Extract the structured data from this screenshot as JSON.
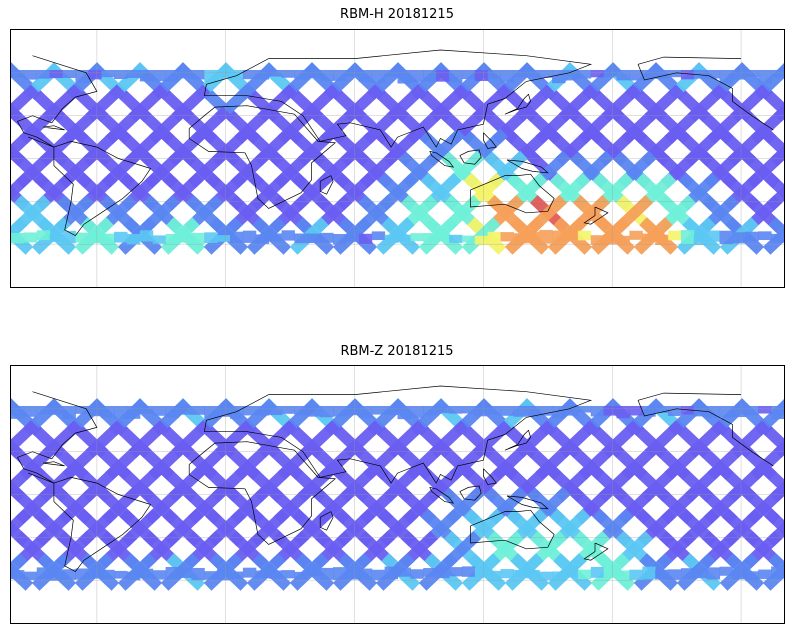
{
  "panels": [
    {
      "title": "RBM-H 20181215",
      "palette": [
        "#6a5ef2",
        "#6a5ef2",
        "#5a86f2",
        "#5bc8f4",
        "#6ff0d8",
        "#f4f46a",
        "#f6a05a",
        "#e45a5a"
      ],
      "hotspots": [
        {
          "lon": -180,
          "lat": -45,
          "value": 0.95
        },
        {
          "lon": -165,
          "lat": -55,
          "value": 0.9
        },
        {
          "lon": -170,
          "lat": -35,
          "value": 0.7
        },
        {
          "lon": -150,
          "lat": -45,
          "value": 0.55
        },
        {
          "lon": 135,
          "lat": -45,
          "value": 0.95
        },
        {
          "lon": 155,
          "lat": -45,
          "value": 1.0
        },
        {
          "lon": 175,
          "lat": -42,
          "value": 0.95
        },
        {
          "lon": 120,
          "lat": -30,
          "value": 0.75
        },
        {
          "lon": 112,
          "lat": -15,
          "value": 0.55
        },
        {
          "lon": 95,
          "lat": -45,
          "value": 0.6
        },
        {
          "lon": -90,
          "lat": -58,
          "value": 0.55
        },
        {
          "lon": -60,
          "lat": -60,
          "value": 0.55
        },
        {
          "lon": -20,
          "lat": -58,
          "value": 0.55
        },
        {
          "lon": 0,
          "lat": 62,
          "value": 0.4
        },
        {
          "lon": 60,
          "lat": 62,
          "value": 0.35
        }
      ]
    },
    {
      "title": "RBM-Z 20181215",
      "palette": [
        "#6a5ef2",
        "#6a5ef2",
        "#5a86f2",
        "#5bc8f4",
        "#6ff0d8",
        "#f4f46a",
        "#f6a05a",
        "#e45a5a"
      ],
      "hotspots": [
        {
          "lon": -178,
          "lat": -50,
          "value": 0.55
        },
        {
          "lon": 130,
          "lat": -38,
          "value": 0.6
        },
        {
          "lon": 150,
          "lat": -35,
          "value": 0.6
        },
        {
          "lon": 165,
          "lat": -45,
          "value": 0.55
        },
        {
          "lon": 120,
          "lat": -25,
          "value": 0.5
        },
        {
          "lon": 60,
          "lat": -58,
          "value": 0.35
        },
        {
          "lon": -100,
          "lat": -58,
          "value": 0.35
        },
        {
          "lon": 30,
          "lat": 62,
          "value": 0.35
        }
      ]
    }
  ]
}
